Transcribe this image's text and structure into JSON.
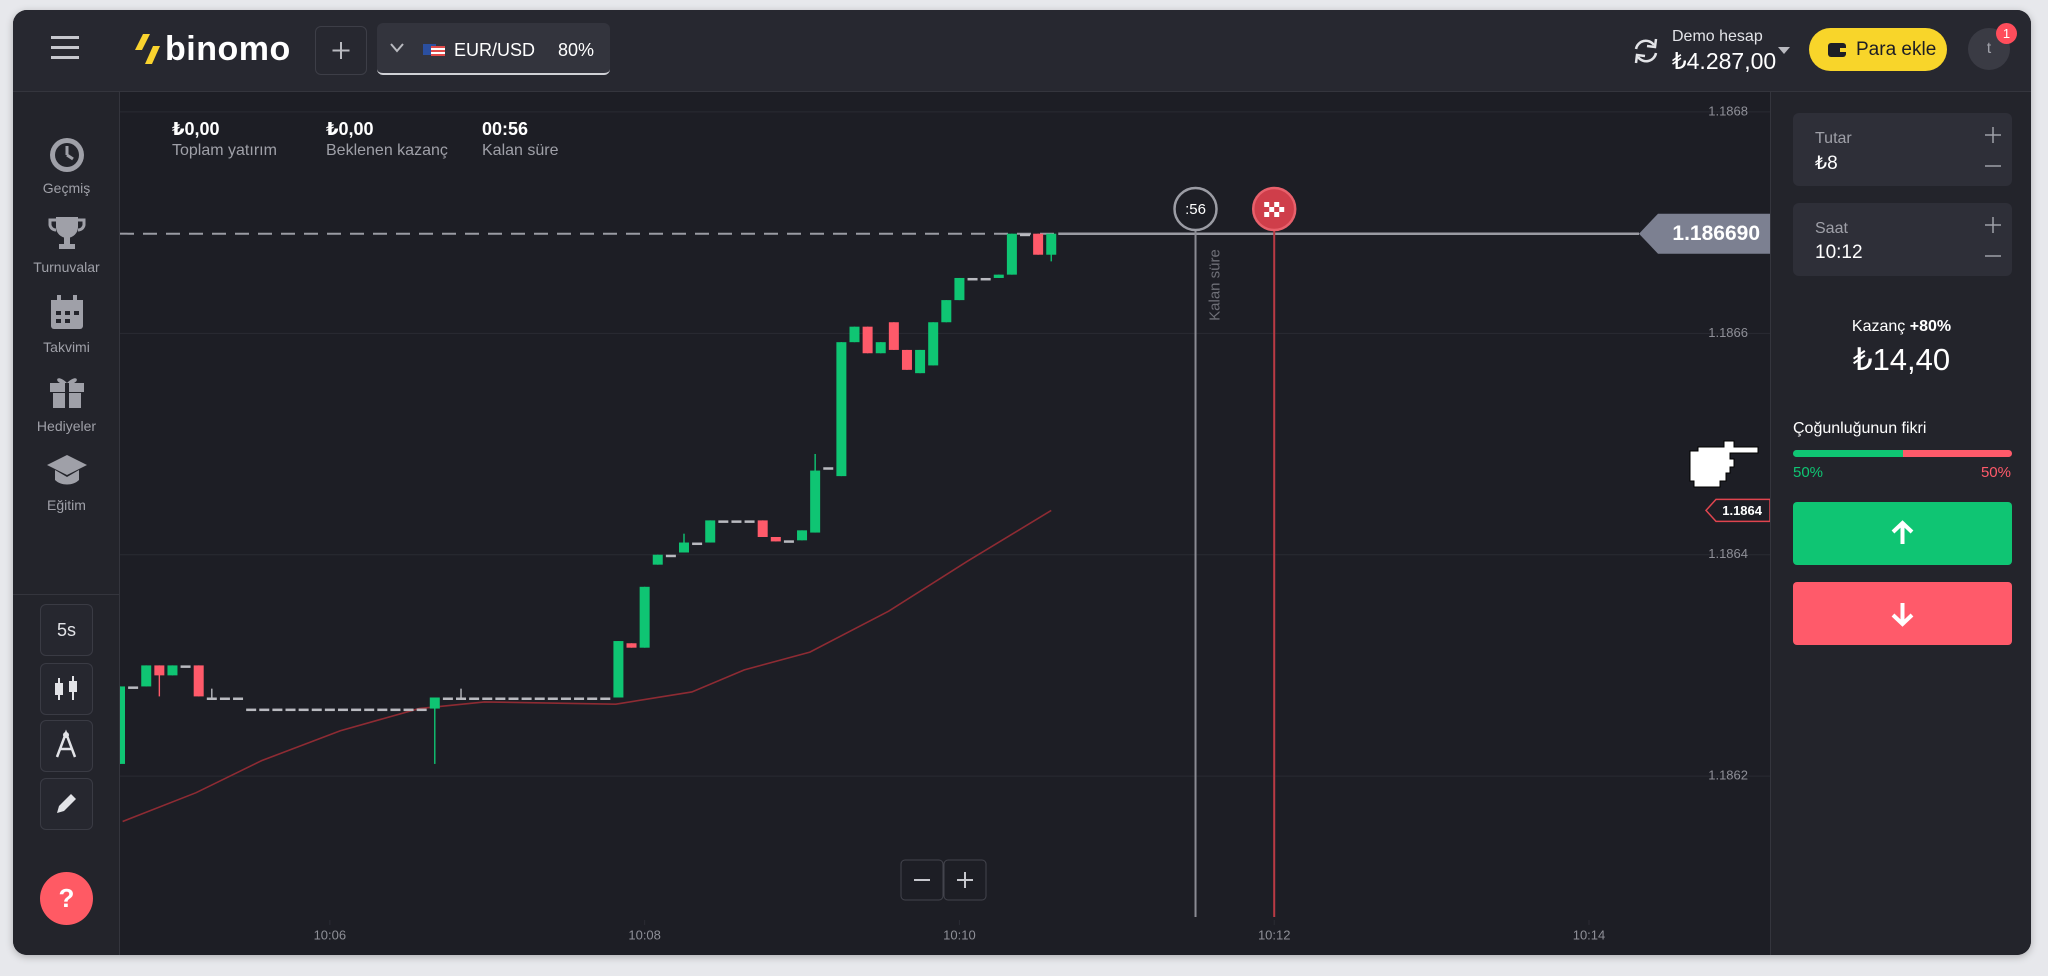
{
  "header": {
    "logo": "binomo",
    "pair": "EUR/USD",
    "payout": "80%",
    "account_label": "Demo hesap",
    "balance": "₺4.287,00",
    "deposit_button": "Para ekle",
    "avatar": "t",
    "notifications": "1"
  },
  "sidebar": {
    "items": [
      "Geçmiş",
      "Turnuvalar",
      "Takvimi",
      "Hediyeler",
      "Eğitim"
    ],
    "timeframe": "5s",
    "help": "?"
  },
  "stats": [
    {
      "value": "₺0,00",
      "label": "Toplam yatırım"
    },
    {
      "value": "₺0,00",
      "label": "Beklenen kazanç"
    },
    {
      "value": "00:56",
      "label": "Kalan süre"
    }
  ],
  "panel": {
    "amount_label": "Tutar",
    "amount": "₺8",
    "time_label": "Saat",
    "time": "10:12",
    "profit_label": "Kazanç",
    "profit_rate": "+80%",
    "profit": "₺14,40",
    "sentiment_title": "Çoğunluğunun fikri",
    "sentiment_up": {
      "value": 50,
      "label": "50%"
    },
    "sentiment_down": {
      "value": 50,
      "label": "50%"
    }
  },
  "chart_data": {
    "type": "candlestick",
    "grid": true,
    "up_color": "#0fc573",
    "down_color": "#ff5a6a",
    "flat_color": "#b9bac0",
    "xlim": [
      280,
      909
    ],
    "ylim": [
      1.18607,
      1.186818
    ],
    "xticks": [
      {
        "value": 360,
        "label": "10:06"
      },
      {
        "value": 480,
        "label": "10:08"
      },
      {
        "value": 600,
        "label": "10:10"
      },
      {
        "value": 720,
        "label": "10:12"
      },
      {
        "value": 840,
        "label": "10:14"
      }
    ],
    "yticks": [
      1.1868,
      1.1866,
      1.1864,
      1.1862
    ],
    "x": [
      280,
      285,
      290,
      295,
      300,
      305,
      310,
      315,
      320,
      325,
      330,
      335,
      340,
      345,
      350,
      355,
      360,
      365,
      370,
      375,
      380,
      385,
      390,
      395,
      400,
      405,
      410,
      415,
      420,
      425,
      430,
      435,
      440,
      445,
      450,
      455,
      460,
      465,
      470,
      475,
      480,
      485,
      490,
      495,
      500,
      505,
      510,
      515,
      520,
      525,
      530,
      535,
      540,
      545,
      550,
      555,
      560,
      565,
      570,
      575,
      580,
      585,
      590,
      595,
      600,
      605,
      610,
      615,
      620,
      625,
      630,
      635
    ],
    "open": [
      1.186211,
      1.186281,
      1.186281,
      1.1863,
      1.186291,
      1.1863,
      1.1863,
      1.186271,
      1.186271,
      1.186271,
      1.186261,
      1.186261,
      1.186261,
      1.186261,
      1.186261,
      1.186261,
      1.186261,
      1.186261,
      1.186261,
      1.186261,
      1.186261,
      1.186261,
      1.186261,
      1.186261,
      1.186261,
      1.186271,
      1.186271,
      1.186271,
      1.186271,
      1.186271,
      1.186271,
      1.186271,
      1.186271,
      1.186271,
      1.186271,
      1.186271,
      1.186271,
      1.186271,
      1.186271,
      1.18632,
      1.186316,
      1.186391,
      1.1864,
      1.186402,
      1.186411,
      1.186411,
      1.186431,
      1.186431,
      1.186431,
      1.186431,
      1.186416,
      1.186413,
      1.186413,
      1.18642,
      1.186479,
      1.186471,
      1.186592,
      1.186606,
      1.186582,
      1.18661,
      1.186585,
      1.186564,
      1.186571,
      1.18661,
      1.18663,
      1.18665,
      1.18665,
      1.18665,
      1.186653,
      1.18669,
      1.18669,
      1.186671
    ],
    "high": [
      1.186281,
      1.186281,
      1.1863,
      1.1863,
      1.1863,
      1.1863,
      1.1863,
      1.186279,
      1.186271,
      1.186271,
      1.186261,
      1.186261,
      1.186261,
      1.186261,
      1.186261,
      1.186261,
      1.186261,
      1.186261,
      1.186261,
      1.186261,
      1.186261,
      1.186261,
      1.186261,
      1.186261,
      1.186271,
      1.186271,
      1.186279,
      1.186271,
      1.186271,
      1.186271,
      1.186271,
      1.186271,
      1.186271,
      1.186271,
      1.186271,
      1.186271,
      1.186271,
      1.186271,
      1.186322,
      1.18632,
      1.186371,
      1.1864,
      1.1864,
      1.186419,
      1.186411,
      1.186431,
      1.186431,
      1.186431,
      1.186431,
      1.186431,
      1.186416,
      1.186413,
      1.186422,
      1.186491,
      1.186479,
      1.186592,
      1.186606,
      1.186606,
      1.186592,
      1.18661,
      1.186585,
      1.186585,
      1.18661,
      1.18663,
      1.18665,
      1.18665,
      1.18665,
      1.186653,
      1.18669,
      1.18669,
      1.18669,
      1.18669
    ],
    "low": [
      1.186211,
      1.186281,
      1.186281,
      1.186272,
      1.186291,
      1.1863,
      1.186272,
      1.186271,
      1.186271,
      1.186271,
      1.186261,
      1.186261,
      1.186261,
      1.186261,
      1.186261,
      1.186261,
      1.186261,
      1.186261,
      1.186261,
      1.186261,
      1.186261,
      1.186261,
      1.186261,
      1.186261,
      1.186211,
      1.186271,
      1.186271,
      1.186271,
      1.186271,
      1.186271,
      1.186271,
      1.186271,
      1.186271,
      1.186271,
      1.186271,
      1.186271,
      1.186271,
      1.186271,
      1.186271,
      1.186316,
      1.186316,
      1.186391,
      1.1864,
      1.186402,
      1.186411,
      1.186411,
      1.186431,
      1.186431,
      1.186431,
      1.186416,
      1.186412,
      1.186413,
      1.186413,
      1.18642,
      1.186479,
      1.186471,
      1.186592,
      1.186582,
      1.186582,
      1.186585,
      1.186567,
      1.186564,
      1.186571,
      1.18661,
      1.18663,
      1.18665,
      1.18665,
      1.18665,
      1.186653,
      1.18669,
      1.186671,
      1.186665
    ],
    "close": [
      1.186281,
      1.186281,
      1.1863,
      1.186291,
      1.1863,
      1.1863,
      1.186272,
      1.186271,
      1.186271,
      1.186271,
      1.186261,
      1.186261,
      1.186261,
      1.186261,
      1.186261,
      1.186261,
      1.186261,
      1.186261,
      1.186261,
      1.186261,
      1.186261,
      1.186261,
      1.186261,
      1.186261,
      1.186271,
      1.186271,
      1.186271,
      1.186271,
      1.186271,
      1.186271,
      1.186271,
      1.186271,
      1.186271,
      1.186271,
      1.186271,
      1.186271,
      1.186271,
      1.186271,
      1.186322,
      1.186316,
      1.186371,
      1.1864,
      1.1864,
      1.186411,
      1.186411,
      1.186431,
      1.186431,
      1.186431,
      1.186431,
      1.186416,
      1.186412,
      1.186413,
      1.186422,
      1.186476,
      1.186479,
      1.186592,
      1.186606,
      1.186582,
      1.186592,
      1.186585,
      1.186567,
      1.186585,
      1.18661,
      1.18663,
      1.18665,
      1.18665,
      1.18665,
      1.186653,
      1.18669,
      1.18669,
      1.186671,
      1.18669
    ],
    "moving_average": {
      "color": "#8e2b33",
      "x": [
        281,
        309,
        334,
        364,
        394,
        419,
        444,
        469,
        498,
        518,
        543,
        573,
        603,
        635
      ],
      "values": [
        1.186159,
        1.186185,
        1.186214,
        1.186241,
        1.186261,
        1.186267,
        1.186266,
        1.186265,
        1.186276,
        1.186296,
        1.186312,
        1.186349,
        1.186394,
        1.18644
      ]
    },
    "ma_tag": {
      "value": 1.18644,
      "label": "1.1864"
    },
    "current_price": {
      "value": 1.18669,
      "label": "1.186690"
    },
    "purchase_deadline": {
      "value": 690,
      "label": ":56"
    },
    "deadline_caption": "Kalan süre",
    "expiration": 720
  }
}
